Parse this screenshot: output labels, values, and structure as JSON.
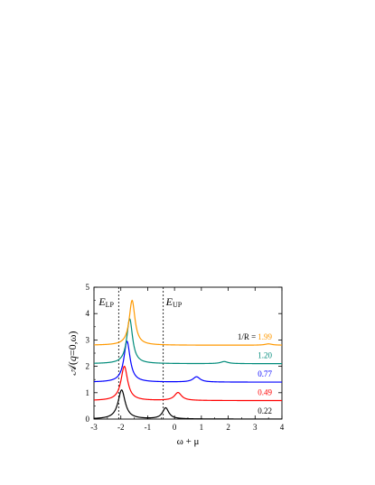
{
  "chart_data": {
    "type": "line",
    "xlim": [
      -3,
      4
    ],
    "ylim": [
      0,
      5
    ],
    "x_ticks": [
      "-3",
      "-2",
      "-1",
      "0",
      "1",
      "2",
      "3",
      "4"
    ],
    "y_ticks": [
      "0",
      "1",
      "2",
      "3",
      "4",
      "5"
    ],
    "xlabel": "ω + μ",
    "ylabel": {
      "prefix": "𝒜(",
      "italic": "q",
      "suffix": "=0,ω)"
    },
    "annotations": {
      "lp": {
        "main": "E",
        "sub": "LP",
        "x": -2.08
      },
      "up": {
        "main": "E",
        "sub": "UP",
        "x": -0.42
      },
      "legend_prefix": "1/R = "
    },
    "series": [
      {
        "name": "0.22",
        "color": "#000000",
        "baseline": 0.0,
        "peaks": [
          {
            "x": -1.97,
            "amp": 1.1,
            "width": 0.16
          },
          {
            "x": -0.33,
            "amp": 0.42,
            "width": 0.14
          }
        ]
      },
      {
        "name": "0.49",
        "color": "#ff0000",
        "baseline": 0.7,
        "peaks": [
          {
            "x": -1.87,
            "amp": 1.3,
            "width": 0.15
          },
          {
            "x": 0.13,
            "amp": 0.3,
            "width": 0.16
          }
        ]
      },
      {
        "name": "0.77",
        "color": "#0000ff",
        "baseline": 1.4,
        "peaks": [
          {
            "x": -1.77,
            "amp": 1.55,
            "width": 0.14
          },
          {
            "x": 0.82,
            "amp": 0.2,
            "width": 0.16
          }
        ]
      },
      {
        "name": "1.20",
        "color": "#008b7a",
        "baseline": 2.1,
        "peaks": [
          {
            "x": -1.67,
            "amp": 1.7,
            "width": 0.13
          },
          {
            "x": 1.85,
            "amp": 0.08,
            "width": 0.16
          }
        ]
      },
      {
        "name": "1.99",
        "color": "#ff9900",
        "baseline": 2.8,
        "peaks": [
          {
            "x": -1.58,
            "amp": 1.7,
            "width": 0.13
          },
          {
            "x": 3.5,
            "amp": 0.05,
            "width": 0.16
          }
        ]
      }
    ]
  }
}
